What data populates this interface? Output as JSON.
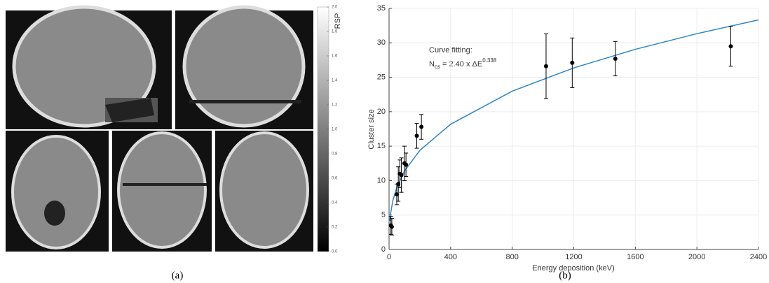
{
  "panel_a": {
    "caption": "(a)",
    "colorbar": {
      "label": "RSP",
      "lim": [
        0,
        2
      ],
      "ticks": [
        {
          "value": 0,
          "label": "0.0"
        },
        0.2,
        0.4,
        0.6,
        0.8,
        {
          "value": 1,
          "label": "1.0"
        },
        1.2,
        1.4,
        1.6,
        1.8,
        {
          "value": 2,
          "label": "2.0"
        }
      ]
    }
  },
  "chart_data": {
    "type": "scatter",
    "caption": "(b)",
    "xlabel": "Energy deposition (keV)",
    "ylabel": "Cluster size",
    "annotation": {
      "title": "Curve fitting:",
      "formula": [
        "N",
        "cs",
        " = 2.40 x ΔE",
        "0.338"
      ]
    },
    "x": [
      12,
      18,
      50,
      60,
      70,
      80,
      100,
      110,
      180,
      210,
      1020,
      1190,
      1470,
      2220
    ],
    "values": [
      3.5,
      3.3,
      8,
      9.5,
      11,
      10.8,
      12.5,
      12.3,
      16.5,
      17.8,
      26.6,
      27.1,
      27.7,
      29.5
    ],
    "errors": [
      1.3,
      1.2,
      1.5,
      2.5,
      2,
      2.5,
      2.5,
      1.7,
      1.8,
      1.8,
      4.7,
      3.6,
      2.5,
      2.9
    ],
    "color": "#000000",
    "fit_x": [
      5,
      10,
      25,
      50,
      100,
      200,
      400,
      800,
      1200,
      1600,
      2000,
      2400
    ],
    "fit_values": [
      4.14,
      5.23,
      7.12,
      9.0,
      11.38,
      14.39,
      18.18,
      22.98,
      26.36,
      29.06,
      31.33,
      33.33
    ],
    "fit_color": "#2e86c9",
    "xlim": [
      0,
      2400
    ],
    "xticks": [
      0,
      400,
      800,
      1200,
      1600,
      2000,
      2400
    ],
    "ylim": [
      0,
      35
    ],
    "yticks": [
      0,
      5,
      10,
      15,
      20,
      25,
      30,
      35
    ],
    "grid": true
  }
}
